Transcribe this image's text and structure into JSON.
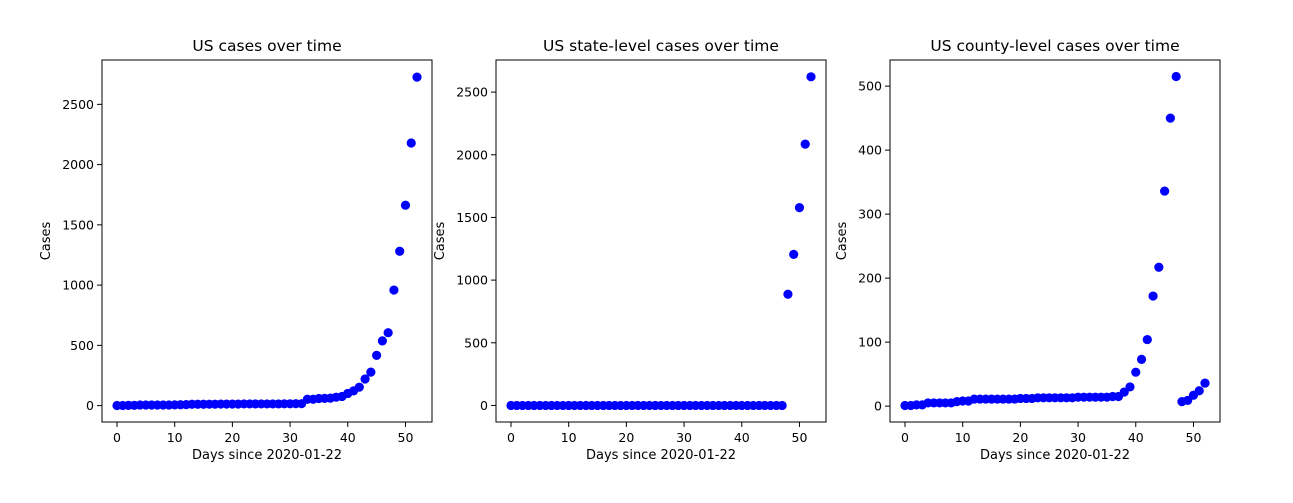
{
  "charts": [
    {
      "type": "scatter",
      "title": "US cases over time",
      "xlabel": "Days since 2020-01-22",
      "ylabel": "Cases",
      "xlim": [
        -2.6,
        54.6
      ],
      "ylim": [
        -136,
        2868
      ],
      "xticks": [
        0,
        10,
        20,
        30,
        40,
        50
      ],
      "yticks": [
        0,
        500,
        1000,
        1500,
        2000,
        2500
      ],
      "color": "#0000ff",
      "x": [
        0,
        1,
        2,
        3,
        4,
        5,
        6,
        7,
        8,
        9,
        10,
        11,
        12,
        13,
        14,
        15,
        16,
        17,
        18,
        19,
        20,
        21,
        22,
        23,
        24,
        25,
        26,
        27,
        28,
        29,
        30,
        31,
        32,
        33,
        34,
        35,
        36,
        37,
        38,
        39,
        40,
        41,
        42,
        43,
        44,
        45,
        46,
        47,
        48,
        49,
        50,
        51,
        52
      ],
      "y": [
        1,
        1,
        2,
        2,
        5,
        5,
        5,
        5,
        5,
        5,
        6,
        7,
        8,
        11,
        11,
        11,
        12,
        12,
        13,
        13,
        13,
        13,
        14,
        14,
        14,
        14,
        14,
        14,
        14,
        15,
        15,
        16,
        16,
        53,
        53,
        59,
        60,
        62,
        70,
        76,
        101,
        122,
        153,
        221,
        278,
        417,
        537,
        605,
        959,
        1281,
        1663,
        2179,
        2726
      ]
    },
    {
      "type": "scatter",
      "title": "US state-level cases over time",
      "xlabel": "Days since 2020-01-22",
      "ylabel": "Cases",
      "xlim": [
        -2.6,
        54.6
      ],
      "ylim": [
        -132,
        2756
      ],
      "xticks": [
        0,
        10,
        20,
        30,
        40,
        50
      ],
      "yticks": [
        0,
        500,
        1000,
        1500,
        2000,
        2500
      ],
      "color": "#0000ff",
      "x": [
        0,
        1,
        2,
        3,
        4,
        5,
        6,
        7,
        8,
        9,
        10,
        11,
        12,
        13,
        14,
        15,
        16,
        17,
        18,
        19,
        20,
        21,
        22,
        23,
        24,
        25,
        26,
        27,
        28,
        29,
        30,
        31,
        32,
        33,
        34,
        35,
        36,
        37,
        38,
        39,
        40,
        41,
        42,
        43,
        44,
        45,
        46,
        47,
        48,
        49,
        50,
        51,
        52
      ],
      "y": [
        0,
        0,
        0,
        0,
        0,
        0,
        0,
        0,
        0,
        0,
        0,
        0,
        0,
        0,
        0,
        0,
        0,
        0,
        0,
        0,
        0,
        0,
        0,
        0,
        0,
        0,
        0,
        0,
        0,
        0,
        0,
        0,
        0,
        0,
        0,
        0,
        0,
        0,
        0,
        0,
        0,
        0,
        0,
        0,
        0,
        0,
        0,
        0,
        887,
        1205,
        1578,
        2085,
        2622
      ]
    },
    {
      "type": "scatter",
      "title": "US county-level cases over time",
      "xlabel": "Days since 2020-01-22",
      "ylabel": "Cases",
      "xlim": [
        -2.6,
        54.6
      ],
      "ylim": [
        -24.8,
        540.8
      ],
      "xticks": [
        0,
        10,
        20,
        30,
        40,
        50
      ],
      "yticks": [
        0,
        100,
        200,
        300,
        400,
        500
      ],
      "color": "#0000ff",
      "x": [
        0,
        1,
        2,
        3,
        4,
        5,
        6,
        7,
        8,
        9,
        10,
        11,
        12,
        13,
        14,
        15,
        16,
        17,
        18,
        19,
        20,
        21,
        22,
        23,
        24,
        25,
        26,
        27,
        28,
        29,
        30,
        31,
        32,
        33,
        34,
        35,
        36,
        37,
        38,
        39,
        40,
        41,
        42,
        43,
        44,
        45,
        46,
        47,
        48,
        49,
        50,
        51,
        52
      ],
      "y": [
        1,
        1,
        2,
        2,
        5,
        5,
        5,
        5,
        5,
        7,
        8,
        8,
        11,
        11,
        11,
        11,
        11,
        11,
        11,
        11,
        12,
        12,
        12,
        13,
        13,
        13,
        13,
        13,
        13,
        13,
        14,
        14,
        14,
        14,
        14,
        14,
        15,
        15,
        22,
        30,
        53,
        73,
        104,
        172,
        217,
        336,
        450,
        515,
        7,
        9,
        17,
        24,
        36
      ]
    }
  ]
}
